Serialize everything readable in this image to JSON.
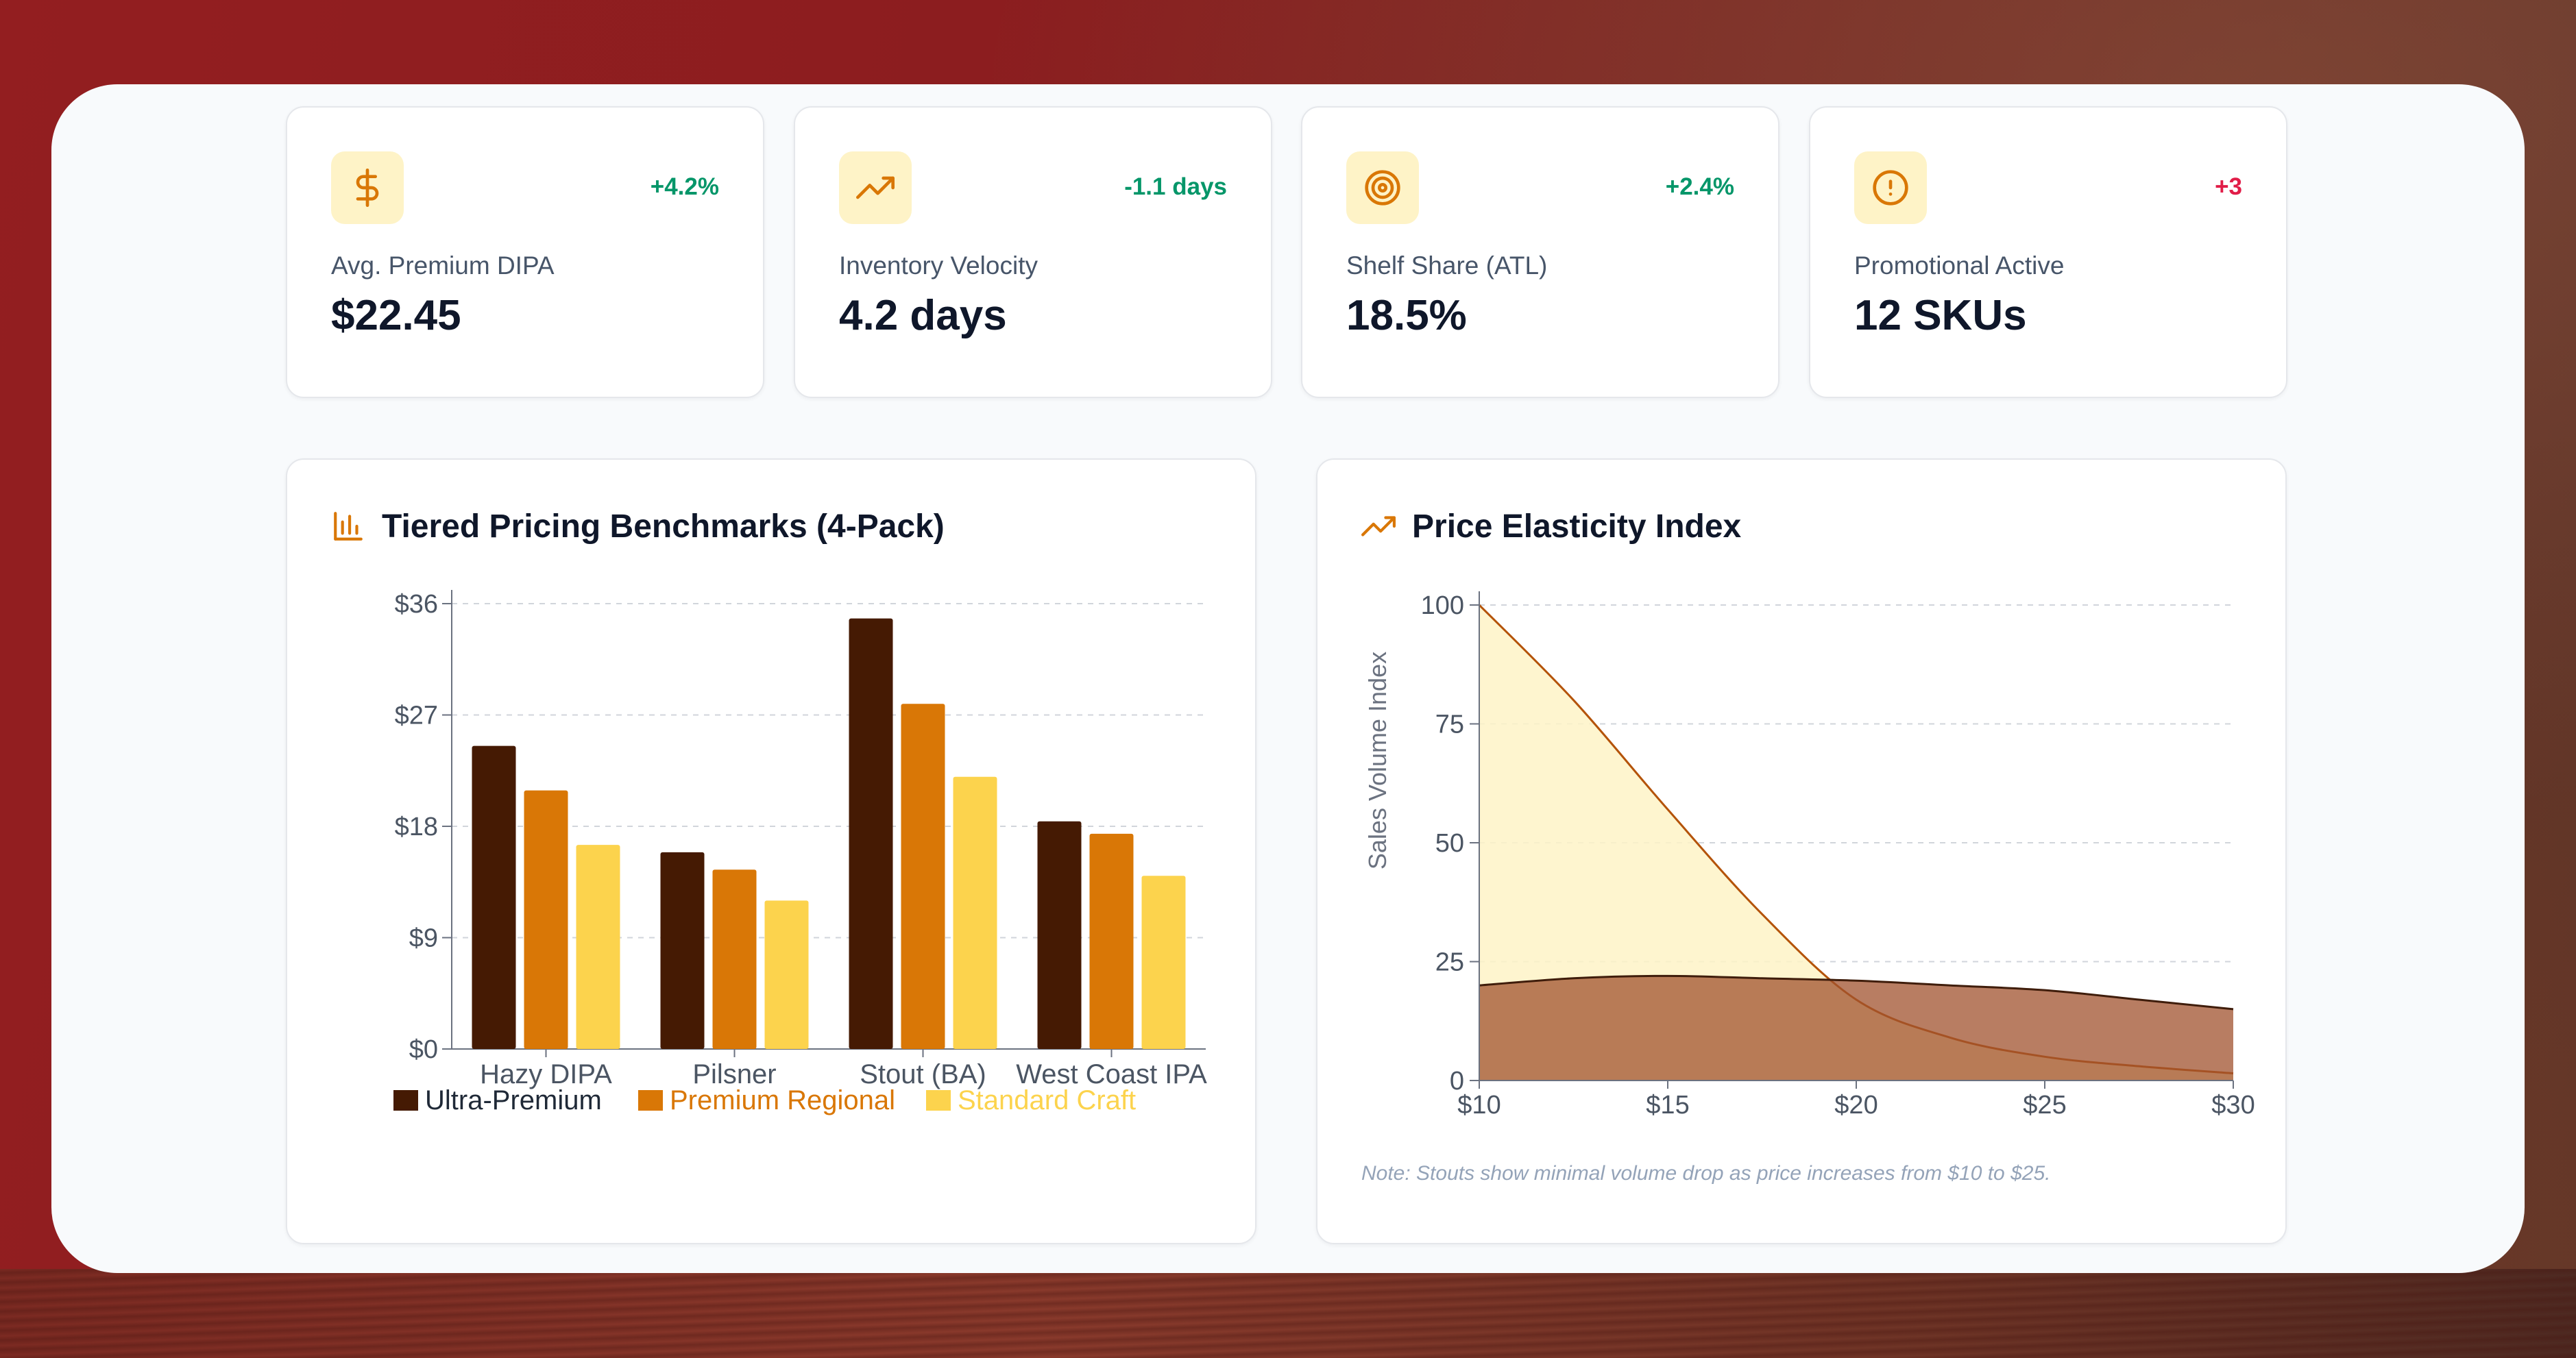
{
  "kpis": [
    {
      "icon": "dollar-sign-icon",
      "change": "+4.2%",
      "change_color": "#059669",
      "label": "Avg. Premium DIPA",
      "value": "$22.45"
    },
    {
      "icon": "trending-up-icon",
      "change": "-1.1 days",
      "change_color": "#059669",
      "label": "Inventory Velocity",
      "value": "4.2 days"
    },
    {
      "icon": "target-icon",
      "change": "+2.4%",
      "change_color": "#059669",
      "label": "Shelf Share (ATL)",
      "value": "18.5%"
    },
    {
      "icon": "alert-circle-icon",
      "change": "+3",
      "change_color": "#e11d48",
      "label": "Promotional Active",
      "value": "12 SKUs"
    }
  ],
  "colors": {
    "accent": "#d97706",
    "icon_bg": "#fef3c7"
  },
  "charts": {
    "pricing_title": "Tiered Pricing Benchmarks (4-Pack)",
    "elasticity_title": "Price Elasticity Index",
    "elasticity_note": "Note: Stouts show minimal volume drop as price increases from $10 to $25."
  },
  "chart_data": [
    {
      "type": "bar",
      "title": "Tiered Pricing Benchmarks (4-Pack)",
      "categories": [
        "Hazy DIPA",
        "Pilsner",
        "Stout (BA)",
        "West Coast IPA"
      ],
      "series": [
        {
          "name": "Ultra-Premium",
          "color": "#451a03",
          "values": [
            24.5,
            15.9,
            34.8,
            18.4
          ]
        },
        {
          "name": "Premium Regional",
          "color": "#d97706",
          "values": [
            20.9,
            14.5,
            27.9,
            17.4
          ]
        },
        {
          "name": "Standard Craft",
          "color": "#fcd34d",
          "values": [
            16.5,
            12.0,
            22.0,
            14.0
          ]
        }
      ],
      "yticks": [
        "$0",
        "$9",
        "$18",
        "$27",
        "$36"
      ],
      "ylim": [
        0,
        36
      ],
      "grid": true,
      "legend": "bottom"
    },
    {
      "type": "area",
      "title": "Price Elasticity Index",
      "ylabel": "Sales Volume Index",
      "x": [
        10,
        12.5,
        15,
        17.5,
        20,
        22.5,
        25,
        27.5,
        30
      ],
      "xticks": [
        "$10",
        "$15",
        "$20",
        "$25",
        "$30"
      ],
      "yticks": [
        "0",
        "25",
        "50",
        "75",
        "100"
      ],
      "ylim": [
        0,
        100
      ],
      "xlim": [
        10,
        30
      ],
      "series": [
        {
          "stroke": "#b45309",
          "fill": "#fef3c7",
          "values": [
            100,
            80,
            57,
            35,
            17,
            9,
            5,
            3,
            1.5
          ]
        },
        {
          "stroke": "#3f1d0b",
          "fill": "#a0522d",
          "values": [
            20,
            21.5,
            22,
            21.5,
            21,
            20,
            19,
            17,
            15
          ]
        }
      ],
      "grid": true
    }
  ]
}
